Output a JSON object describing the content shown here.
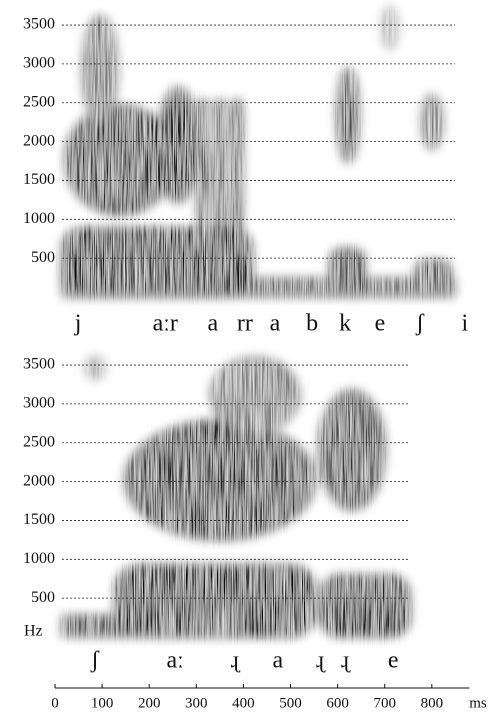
{
  "chart_data": [
    {
      "type": "spectrogram",
      "ylim": [
        0,
        3700
      ],
      "yticks": [
        500,
        1000,
        1500,
        2000,
        2500,
        3000,
        3500
      ],
      "grid": true,
      "xlim": [
        0,
        880
      ],
      "segments": {
        "labels": [
          "j",
          "aːr",
          "a",
          "rr",
          "a",
          "b",
          "k",
          "e",
          "ʃ",
          "i"
        ],
        "times": [
          49,
          234,
          335,
          403,
          467,
          546,
          616,
          690,
          775,
          870
        ]
      }
    },
    {
      "type": "spectrogram",
      "ylim": [
        0,
        3700
      ],
      "yticks": [
        500,
        1000,
        1500,
        2000,
        2500,
        3000,
        3500
      ],
      "grid": true,
      "ylabel": "Hz",
      "xlim": [
        0,
        880
      ],
      "xticks": [
        0,
        100,
        200,
        300,
        400,
        500,
        600,
        700,
        800
      ],
      "xlabel": "ms",
      "segments": {
        "labels": [
          "ʃ",
          "aː",
          "ɻ",
          "a",
          "ɻ",
          "ɻ",
          "e"
        ],
        "times": [
          85,
          255,
          382,
          473,
          563,
          616,
          718
        ]
      }
    }
  ]
}
